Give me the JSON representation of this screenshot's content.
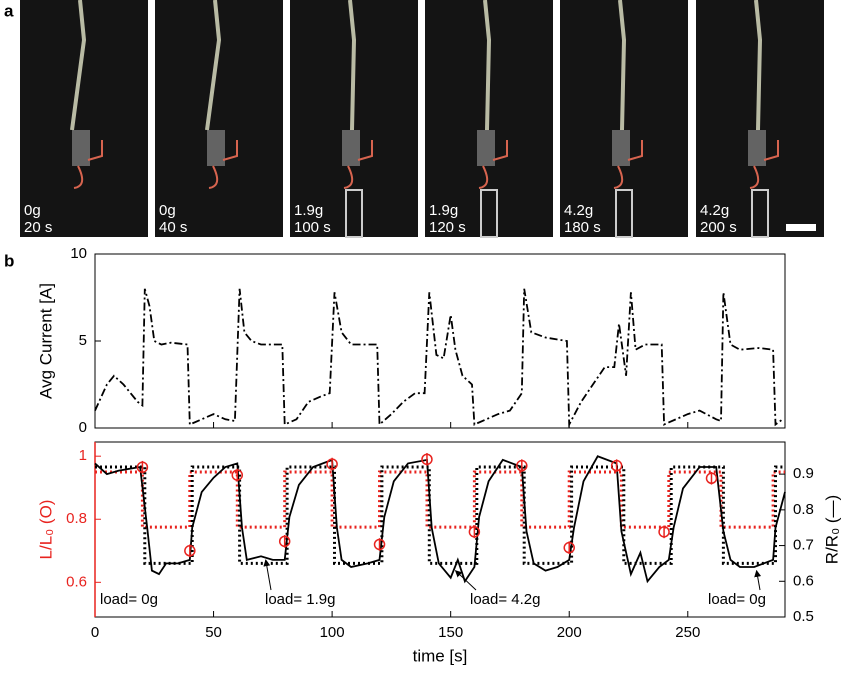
{
  "figure": {
    "panel_labels": [
      "a",
      "b"
    ],
    "photos": [
      {
        "load": "0g",
        "time": "20 s"
      },
      {
        "load": "0g",
        "time": "40 s"
      },
      {
        "load": "1.9g",
        "time": "100 s"
      },
      {
        "load": "1.9g",
        "time": "120 s"
      },
      {
        "load": "4.2g",
        "time": "180 s"
      },
      {
        "load": "4.2g",
        "time": "200 s"
      }
    ]
  },
  "chart_data": [
    {
      "type": "line",
      "ylabel": "Avg Current [A]",
      "xlim": [
        0,
        291
      ],
      "ylim": [
        0,
        10
      ],
      "yticks": [
        0,
        5,
        10
      ],
      "xticks": [
        0,
        50,
        100,
        150,
        200,
        250
      ],
      "series": [
        {
          "color": "#000000",
          "style": "dashdot",
          "x": [
            0,
            5,
            8,
            12,
            18,
            20,
            21,
            23,
            25,
            28,
            32,
            39,
            40,
            45,
            50,
            55,
            59,
            61,
            63,
            66,
            70,
            79,
            80,
            85,
            90,
            95,
            99,
            101,
            104,
            108,
            119,
            120,
            125,
            130,
            135,
            139,
            141,
            144,
            147,
            150,
            152,
            155,
            159,
            160,
            165,
            170,
            175,
            180,
            181,
            184,
            190,
            199,
            200,
            205,
            210,
            215,
            219,
            221,
            224,
            226,
            228,
            232,
            239,
            240,
            245,
            250,
            255,
            262,
            264,
            265,
            268,
            272,
            280,
            286,
            287,
            290
          ],
          "values": [
            1,
            2.5,
            3,
            2.5,
            1.5,
            1.3,
            8,
            7,
            5,
            4.8,
            4.9,
            4.8,
            0.2,
            0.5,
            0.8,
            0.5,
            0.4,
            8,
            5.5,
            5,
            4.8,
            4.8,
            0.2,
            0.5,
            1.5,
            1.8,
            2,
            7.8,
            5.5,
            4.8,
            4.8,
            0.2,
            0.8,
            1.5,
            2,
            2,
            7.8,
            4.2,
            4,
            6.5,
            4.5,
            3,
            2.5,
            0.2,
            0.5,
            0.8,
            1,
            2,
            8,
            5.5,
            5.2,
            5,
            0.2,
            1.5,
            2.5,
            3.5,
            3.5,
            6,
            3,
            7.8,
            4.5,
            4.8,
            4.8,
            0.2,
            0.5,
            0.8,
            1,
            0.5,
            0.4,
            7.8,
            4.8,
            4.5,
            4.6,
            4.5,
            0.2,
            0.5
          ]
        }
      ]
    },
    {
      "type": "line",
      "xlabel": "time [s]",
      "ylabel": "L/L₀ (O)",
      "y2label": "R/R₀ (—)",
      "xlim": [
        0,
        291
      ],
      "ylim": [
        0.49,
        1.045
      ],
      "yticks": [
        0.6,
        0.8,
        1
      ],
      "y2lim": [
        0.5,
        0.99
      ],
      "y2ticks": [
        0.5,
        0.6,
        0.7,
        0.8,
        0.9
      ],
      "xticks": [
        0,
        50,
        100,
        150,
        200,
        250
      ],
      "series": [
        {
          "color": "#e8231f",
          "style": "dotted",
          "x": [
            0,
            20,
            20,
            40,
            40,
            60,
            60,
            80,
            80,
            100,
            100,
            120,
            120,
            140,
            140,
            160,
            160,
            180,
            180,
            200,
            200,
            222,
            222,
            242,
            242,
            264,
            264,
            286,
            286,
            291
          ],
          "values": [
            0.95,
            0.95,
            0.775,
            0.775,
            0.95,
            0.95,
            0.775,
            0.775,
            0.95,
            0.95,
            0.775,
            0.775,
            0.95,
            0.95,
            0.775,
            0.775,
            0.95,
            0.95,
            0.775,
            0.775,
            0.95,
            0.95,
            0.775,
            0.775,
            0.95,
            0.95,
            0.775,
            0.775,
            0.95,
            0.95
          ]
        },
        {
          "color": "#000000",
          "style": "dotted",
          "axis": "y2",
          "x": [
            0,
            21,
            21,
            41,
            41,
            61,
            61,
            81,
            81,
            101,
            101,
            121,
            121,
            141,
            141,
            161,
            161,
            181,
            181,
            201,
            201,
            223,
            223,
            243,
            243,
            265,
            265,
            287,
            287,
            291
          ],
          "values": [
            0.92,
            0.92,
            0.65,
            0.65,
            0.92,
            0.92,
            0.65,
            0.65,
            0.92,
            0.92,
            0.65,
            0.65,
            0.92,
            0.92,
            0.65,
            0.65,
            0.92,
            0.92,
            0.65,
            0.65,
            0.92,
            0.92,
            0.65,
            0.65,
            0.92,
            0.92,
            0.65,
            0.65,
            0.92,
            0.92
          ]
        },
        {
          "color": "#000000",
          "style": "solid",
          "axis": "y2",
          "x": [
            0,
            5,
            10,
            19,
            22,
            24,
            27,
            30,
            35,
            40,
            41,
            45,
            50,
            55,
            60,
            62,
            64,
            70,
            75,
            80,
            82,
            86,
            92,
            100,
            102,
            104,
            108,
            115,
            120,
            122,
            126,
            132,
            140,
            142,
            145,
            150,
            153,
            156,
            160,
            162,
            166,
            172,
            180,
            182,
            185,
            190,
            195,
            200,
            202,
            206,
            212,
            220,
            222,
            226,
            230,
            233,
            238,
            242,
            244,
            248,
            255,
            262,
            265,
            268,
            272,
            278,
            286,
            287,
            291
          ],
          "values": [
            0.93,
            0.9,
            0.91,
            0.92,
            0.75,
            0.63,
            0.62,
            0.65,
            0.65,
            0.66,
            0.75,
            0.85,
            0.89,
            0.92,
            0.93,
            0.75,
            0.66,
            0.67,
            0.66,
            0.66,
            0.78,
            0.87,
            0.92,
            0.94,
            0.75,
            0.66,
            0.64,
            0.65,
            0.66,
            0.78,
            0.88,
            0.93,
            0.94,
            0.75,
            0.65,
            0.61,
            0.66,
            0.6,
            0.64,
            0.78,
            0.88,
            0.94,
            0.92,
            0.74,
            0.65,
            0.63,
            0.64,
            0.66,
            0.75,
            0.88,
            0.95,
            0.93,
            0.74,
            0.62,
            0.68,
            0.6,
            0.64,
            0.66,
            0.75,
            0.86,
            0.92,
            0.92,
            0.74,
            0.66,
            0.64,
            0.64,
            0.66,
            0.75,
            0.85
          ]
        },
        {
          "color": "#e8231f",
          "style": "markers",
          "x": [
            20,
            40,
            60,
            80,
            100,
            120,
            140,
            160,
            180,
            200,
            220,
            240,
            260
          ],
          "values": [
            0.965,
            0.7,
            0.94,
            0.73,
            0.975,
            0.72,
            0.99,
            0.76,
            0.97,
            0.71,
            0.97,
            0.76,
            0.93
          ],
          "errors": [
            0.02,
            0.02,
            0.02,
            0.02,
            0.02,
            0.02,
            0.02,
            0.02,
            0.02,
            0.02,
            0.02,
            0.02,
            0.02
          ]
        }
      ],
      "annotations": [
        {
          "text": "load= 0g"
        },
        {
          "text": "load= 1.9g",
          "x": 72,
          "y": 0.66
        },
        {
          "text": "load= 4.2g",
          "x": 152,
          "y": 0.63
        },
        {
          "text": "load= 0g",
          "x": 279,
          "y": 0.63
        }
      ]
    }
  ]
}
